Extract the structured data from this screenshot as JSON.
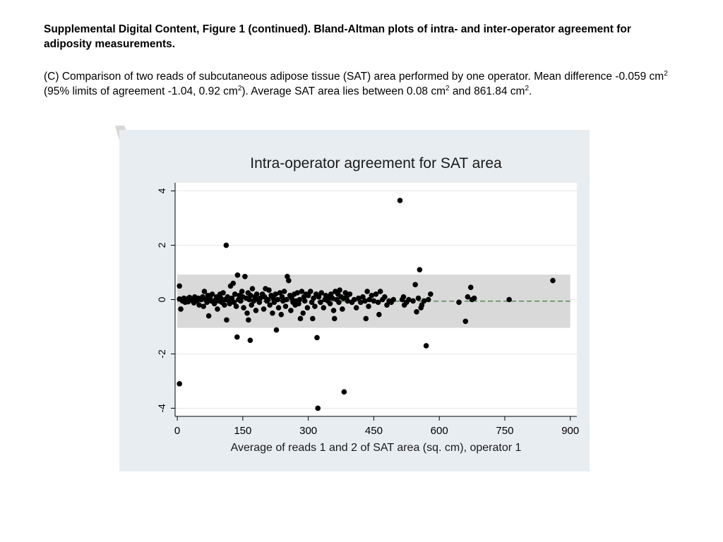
{
  "header": {
    "title": "Supplemental Digital Content, Figure 1 (continued). Bland-Altman plots of intra- and inter-operator agreement for adiposity measurements."
  },
  "caption": {
    "part1": "(C) Comparison of two reads of subcutaneous adipose tissue (SAT) area performed by one operator. Mean difference -0.059 cm",
    "sup1": "2",
    "part2": " (95% limits of agreement -1.04, 0.92 cm",
    "sup2": "2",
    "part3": "). Average SAT area lies between 0.08 cm",
    "sup3": "2",
    "part4": " and 861.84 cm",
    "sup4": "2",
    "part5": "."
  },
  "colors": {
    "panel_background": "#e8edf1",
    "plot_background": "#ffffff",
    "limits_band": "#d9d9d9",
    "gridline": "#e6e6e6",
    "points": "#000000",
    "mean_line": "#3f7a3f",
    "callout": "#c9c9c9"
  },
  "chart_data": {
    "type": "scatter",
    "title": "Intra-operator agreement for SAT area",
    "xlabel": "Average of reads 1 and 2 of SAT area (sq. cm), operator 1",
    "ylabel": "",
    "xlim": [
      -5,
      915
    ],
    "ylim": [
      -4.3,
      4.3
    ],
    "xticks": [
      0,
      150,
      300,
      450,
      600,
      750,
      900
    ],
    "xtick_labels": [
      "0",
      "150",
      "300",
      "450",
      "600",
      "750",
      "900"
    ],
    "yticks": [
      -4,
      -2,
      0,
      2,
      4
    ],
    "ytick_labels": [
      "-4",
      "-2",
      "0",
      "2",
      "4"
    ],
    "grid": "horizontal",
    "mean_difference": -0.059,
    "limits_of_agreement": [
      -1.04,
      0.92
    ],
    "limits_x_range": [
      0,
      900
    ],
    "points": [
      [
        5,
        -3.1
      ],
      [
        5,
        0.5
      ],
      [
        5,
        0.02
      ],
      [
        8,
        -0.35
      ],
      [
        10,
        0.0
      ],
      [
        12,
        -0.05
      ],
      [
        15,
        0.05
      ],
      [
        18,
        -0.1
      ],
      [
        20,
        0.02
      ],
      [
        25,
        -0.08
      ],
      [
        28,
        0.08
      ],
      [
        30,
        -0.02
      ],
      [
        35,
        0.0
      ],
      [
        38,
        -0.12
      ],
      [
        40,
        0.1
      ],
      [
        45,
        -0.05
      ],
      [
        48,
        0.05
      ],
      [
        50,
        -0.2
      ],
      [
        55,
        0.0
      ],
      [
        58,
        0.1
      ],
      [
        60,
        -0.25
      ],
      [
        62,
        0.3
      ],
      [
        65,
        0.0
      ],
      [
        68,
        -0.1
      ],
      [
        70,
        0.15
      ],
      [
        72,
        -0.6
      ],
      [
        75,
        0.05
      ],
      [
        78,
        -0.05
      ],
      [
        80,
        0.2
      ],
      [
        85,
        -0.15
      ],
      [
        88,
        0.0
      ],
      [
        90,
        0.1
      ],
      [
        92,
        -0.35
      ],
      [
        95,
        -0.05
      ],
      [
        98,
        0.2
      ],
      [
        100,
        0.05
      ],
      [
        102,
        -0.1
      ],
      [
        105,
        0.25
      ],
      [
        108,
        -0.2
      ],
      [
        110,
        0.0
      ],
      [
        112,
        2.0
      ],
      [
        113,
        -0.75
      ],
      [
        115,
        0.1
      ],
      [
        118,
        -0.05
      ],
      [
        120,
        -0.15
      ],
      [
        122,
        0.5
      ],
      [
        125,
        0.05
      ],
      [
        128,
        0.6
      ],
      [
        130,
        -0.1
      ],
      [
        132,
        0.2
      ],
      [
        135,
        -0.25
      ],
      [
        137,
        -1.38
      ],
      [
        138,
        0.9
      ],
      [
        140,
        0.0
      ],
      [
        142,
        0.15
      ],
      [
        145,
        -0.05
      ],
      [
        148,
        0.3
      ],
      [
        150,
        0.1
      ],
      [
        152,
        -0.3
      ],
      [
        155,
        0.85
      ],
      [
        158,
        0.05
      ],
      [
        160,
        -0.5
      ],
      [
        162,
        0.25
      ],
      [
        163,
        -0.75
      ],
      [
        165,
        0.0
      ],
      [
        167,
        -1.5
      ],
      [
        168,
        0.15
      ],
      [
        170,
        -0.2
      ],
      [
        172,
        0.4
      ],
      [
        175,
        -0.05
      ],
      [
        178,
        0.1
      ],
      [
        180,
        -0.4
      ],
      [
        182,
        0.2
      ],
      [
        185,
        0.0
      ],
      [
        188,
        -0.1
      ],
      [
        190,
        0.05
      ],
      [
        195,
        0.2
      ],
      [
        198,
        -0.35
      ],
      [
        200,
        0.1
      ],
      [
        202,
        0.4
      ],
      [
        205,
        -0.05
      ],
      [
        208,
        0.0
      ],
      [
        210,
        0.35
      ],
      [
        212,
        -0.2
      ],
      [
        215,
        0.15
      ],
      [
        218,
        -0.5
      ],
      [
        220,
        0.05
      ],
      [
        222,
        -0.1
      ],
      [
        225,
        0.2
      ],
      [
        227,
        -1.12
      ],
      [
        230,
        0.0
      ],
      [
        232,
        -0.3
      ],
      [
        235,
        0.25
      ],
      [
        238,
        -0.55
      ],
      [
        240,
        0.1
      ],
      [
        242,
        -0.05
      ],
      [
        245,
        0.3
      ],
      [
        248,
        -0.25
      ],
      [
        250,
        0.0
      ],
      [
        252,
        0.85
      ],
      [
        255,
        0.7
      ],
      [
        258,
        0.15
      ],
      [
        260,
        -0.4
      ],
      [
        262,
        0.05
      ],
      [
        265,
        -0.1
      ],
      [
        268,
        0.2
      ],
      [
        270,
        -0.2
      ],
      [
        272,
        -0.05
      ],
      [
        275,
        0.25
      ],
      [
        278,
        -0.15
      ],
      [
        280,
        0.0
      ],
      [
        282,
        -0.7
      ],
      [
        285,
        0.3
      ],
      [
        288,
        -0.5
      ],
      [
        290,
        0.1
      ],
      [
        292,
        -0.05
      ],
      [
        295,
        0.2
      ],
      [
        298,
        -0.3
      ],
      [
        300,
        0.15
      ],
      [
        305,
        0.3
      ],
      [
        308,
        -0.1
      ],
      [
        310,
        -0.7
      ],
      [
        312,
        0.05
      ],
      [
        315,
        -0.25
      ],
      [
        318,
        0.2
      ],
      [
        320,
        -1.4
      ],
      [
        322,
        -4.0
      ],
      [
        324,
        0.1
      ],
      [
        328,
        -0.1
      ],
      [
        330,
        0.25
      ],
      [
        335,
        -0.3
      ],
      [
        338,
        0.0
      ],
      [
        340,
        0.15
      ],
      [
        345,
        -0.05
      ],
      [
        348,
        0.1
      ],
      [
        350,
        -0.15
      ],
      [
        352,
        0.2
      ],
      [
        355,
        0.05
      ],
      [
        358,
        -0.4
      ],
      [
        360,
        -0.7
      ],
      [
        362,
        0.3
      ],
      [
        365,
        0.0
      ],
      [
        368,
        0.2
      ],
      [
        370,
        -0.1
      ],
      [
        372,
        0.35
      ],
      [
        375,
        0.1
      ],
      [
        378,
        -0.35
      ],
      [
        380,
        0.05
      ],
      [
        382,
        -3.4
      ],
      [
        385,
        0.25
      ],
      [
        388,
        0.1
      ],
      [
        390,
        -0.05
      ],
      [
        395,
        0.2
      ],
      [
        400,
        -0.1
      ],
      [
        405,
        0.0
      ],
      [
        410,
        -0.3
      ],
      [
        415,
        0.05
      ],
      [
        420,
        -0.1
      ],
      [
        425,
        0.1
      ],
      [
        430,
        -0.05
      ],
      [
        432,
        -0.7
      ],
      [
        435,
        0.3
      ],
      [
        438,
        -0.25
      ],
      [
        440,
        0.0
      ],
      [
        445,
        0.15
      ],
      [
        450,
        -0.05
      ],
      [
        455,
        0.2
      ],
      [
        460,
        -0.1
      ],
      [
        462,
        -0.55
      ],
      [
        465,
        0.3
      ],
      [
        470,
        0.0
      ],
      [
        475,
        0.1
      ],
      [
        480,
        -0.2
      ],
      [
        485,
        -0.05
      ],
      [
        490,
        -0.1
      ],
      [
        495,
        0.0
      ],
      [
        510,
        3.65
      ],
      [
        515,
        0.0
      ],
      [
        518,
        0.1
      ],
      [
        520,
        -0.2
      ],
      [
        525,
        -0.1
      ],
      [
        530,
        0.0
      ],
      [
        540,
        -0.05
      ],
      [
        545,
        0.55
      ],
      [
        548,
        -0.45
      ],
      [
        552,
        0.05
      ],
      [
        555,
        1.1
      ],
      [
        558,
        -0.3
      ],
      [
        560,
        -0.2
      ],
      [
        565,
        -0.05
      ],
      [
        570,
        -1.7
      ],
      [
        575,
        0.0
      ],
      [
        580,
        0.2
      ],
      [
        645,
        -0.1
      ],
      [
        660,
        -0.8
      ],
      [
        665,
        0.1
      ],
      [
        672,
        0.45
      ],
      [
        675,
        0.0
      ],
      [
        680,
        0.05
      ],
      [
        760,
        0.0
      ],
      [
        860,
        0.7
      ]
    ]
  }
}
